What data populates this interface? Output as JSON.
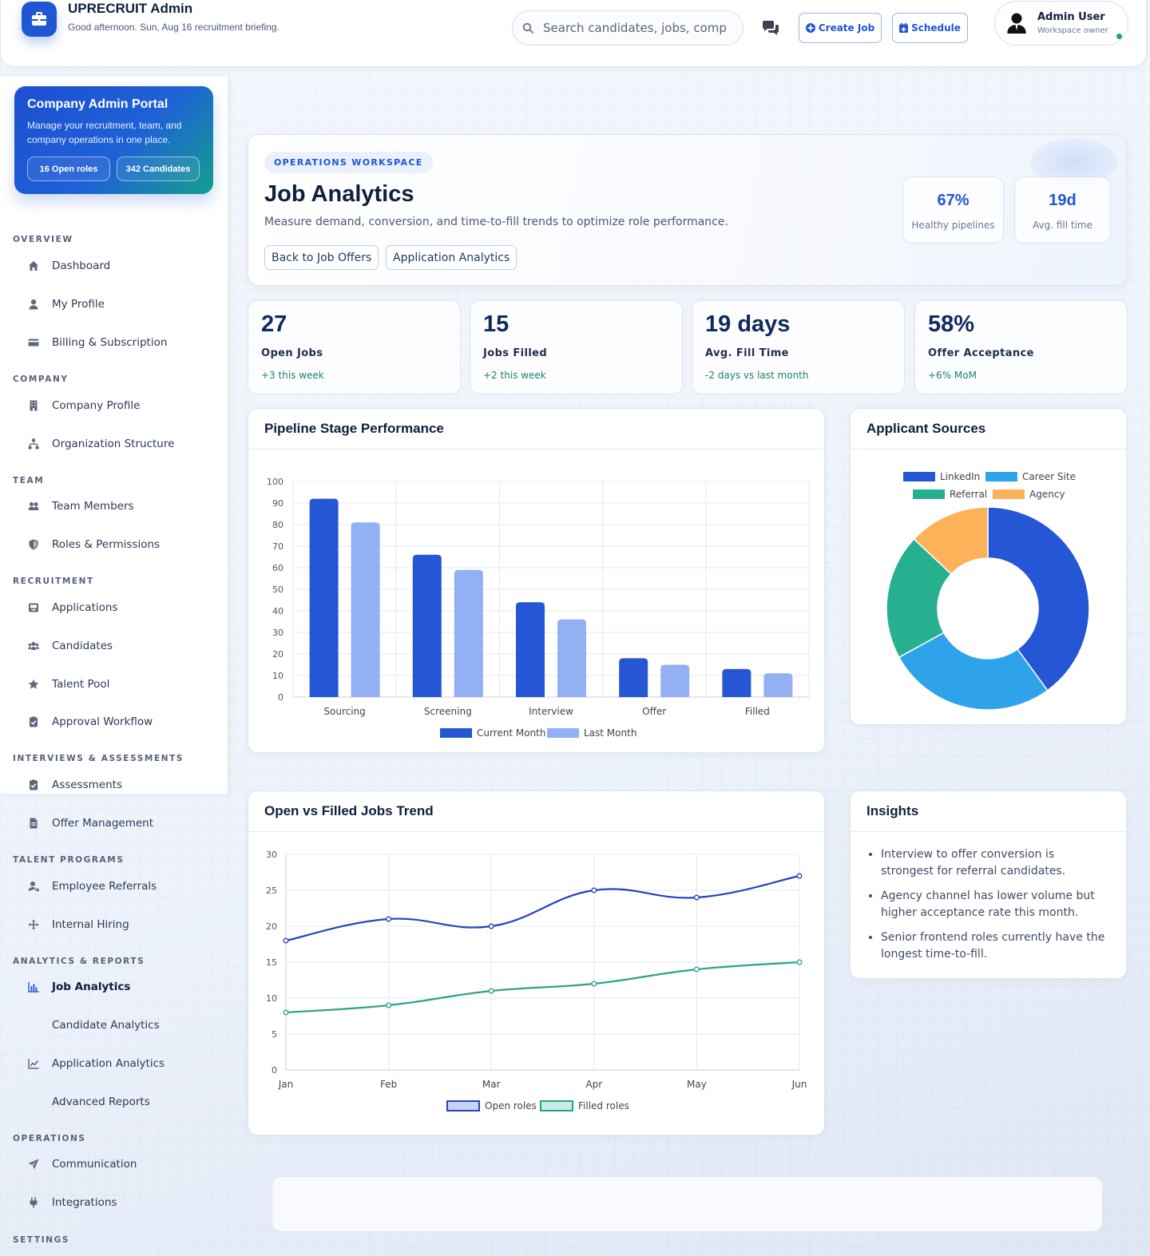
{
  "brand": {
    "title": "UPRECRUIT Admin",
    "subtitle": "Good afternoon. Sun, Aug 16 recruitment briefing."
  },
  "search": {
    "placeholder": "Search candidates, jobs, companies"
  },
  "topbar": {
    "create_job": "Create Job",
    "schedule": "Schedule",
    "user_name": "Admin User",
    "user_role": "Workspace owner"
  },
  "portal": {
    "title": "Company Admin Portal",
    "description": "Manage your recruitment, team, and company operations in one place.",
    "chip_roles": "16 Open roles",
    "chip_candidates": "342 Candidates"
  },
  "nav": {
    "sections": {
      "overview": "OVERVIEW",
      "company": "COMPANY",
      "team": "TEAM",
      "recruitment": "RECRUITMENT",
      "interviews": "INTERVIEWS & ASSESSMENTS",
      "talent": "TALENT PROGRAMS",
      "analytics": "ANALYTICS & REPORTS",
      "operations": "OPERATIONS",
      "settings": "SETTINGS"
    },
    "items": {
      "dashboard": "Dashboard",
      "my_profile": "My Profile",
      "billing": "Billing & Subscription",
      "company_profile": "Company Profile",
      "org_structure": "Organization Structure",
      "team_members": "Team Members",
      "roles": "Roles & Permissions",
      "applications": "Applications",
      "candidates": "Candidates",
      "talent_pool": "Talent Pool",
      "approval": "Approval Workflow",
      "assessments": "Assessments",
      "offer_management": "Offer Management",
      "employee_referrals": "Employee Referrals",
      "internal_hiring": "Internal Hiring",
      "job_analytics": "Job Analytics",
      "candidate_analytics": "Candidate Analytics",
      "application_analytics": "Application Analytics",
      "advanced_reports": "Advanced Reports",
      "communication": "Communication",
      "integrations": "Integrations"
    }
  },
  "hero": {
    "tag": "OPERATIONS WORKSPACE",
    "title": "Job Analytics",
    "subtitle": "Measure demand, conversion, and time-to-fill trends to optimize role performance.",
    "btn_back": "Back to Job Offers",
    "btn_app": "Application Analytics",
    "stat1_value": "67%",
    "stat1_label": "Healthy pipelines",
    "stat2_value": "19d",
    "stat2_label": "Avg. fill time"
  },
  "kpis": [
    {
      "value": "27",
      "label": "Open Jobs",
      "trend": "+3 this week"
    },
    {
      "value": "15",
      "label": "Jobs Filled",
      "trend": "+2 this week"
    },
    {
      "value": "19 days",
      "label": "Avg. Fill Time",
      "trend": "-2 days vs last month"
    },
    {
      "value": "58%",
      "label": "Offer Acceptance",
      "trend": "+6% MoM"
    }
  ],
  "cards": {
    "pipeline": "Pipeline Stage Performance",
    "sources": "Applicant Sources",
    "trend": "Open vs Filled Jobs Trend",
    "insights": "Insights"
  },
  "insights": [
    "Interview to offer conversion is strongest for referral candidates.",
    "Agency channel has lower volume but higher acceptance rate this month.",
    "Senior frontend roles currently have the longest time-to-fill."
  ],
  "colors": {
    "accent": "#1f56d3",
    "current_month": "#2456d6",
    "last_month": "#93b0f5",
    "linkedin": "#2456d6",
    "career_site": "#2ea3ea",
    "referral": "#27b08f",
    "agency": "#fdb159",
    "open_roles": "#2444bf",
    "filled_roles": "#2aa38e"
  },
  "chart_data": [
    {
      "type": "bar",
      "title": "Pipeline Stage Performance",
      "categories": [
        "Sourcing",
        "Screening",
        "Interview",
        "Offer",
        "Filled"
      ],
      "series": [
        {
          "name": "Current Month",
          "values": [
            92,
            66,
            44,
            18,
            13
          ]
        },
        {
          "name": "Last Month",
          "values": [
            81,
            59,
            36,
            15,
            11
          ]
        }
      ],
      "ylim": [
        0,
        100
      ],
      "yticks": [
        0,
        10,
        20,
        30,
        40,
        50,
        60,
        70,
        80,
        90,
        100
      ],
      "grid": true,
      "legend": "bottom"
    },
    {
      "type": "pie",
      "title": "Applicant Sources",
      "categories": [
        "LinkedIn",
        "Career Site",
        "Referral",
        "Agency"
      ],
      "values": [
        40,
        27,
        20,
        13
      ],
      "donut": true,
      "legend": "top"
    },
    {
      "type": "line",
      "title": "Open vs Filled Jobs Trend",
      "x": [
        "Jan",
        "Feb",
        "Mar",
        "Apr",
        "May",
        "Jun"
      ],
      "series": [
        {
          "name": "Open roles",
          "values": [
            18,
            21,
            20,
            25,
            24,
            27
          ]
        },
        {
          "name": "Filled roles",
          "values": [
            8,
            9,
            11,
            12,
            14,
            15
          ]
        }
      ],
      "ylim": [
        0,
        30
      ],
      "yticks": [
        0,
        5,
        10,
        15,
        20,
        25,
        30
      ],
      "grid": true,
      "legend": "bottom"
    }
  ]
}
